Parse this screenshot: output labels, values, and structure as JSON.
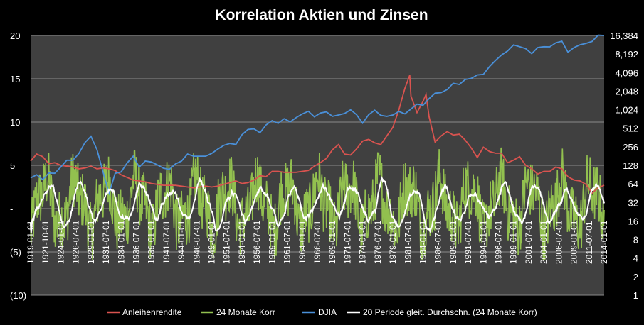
{
  "chart_data": {
    "type": "line",
    "title": "Korrelation Aktien und Zinsen",
    "plot_background": "#404040",
    "grid": true,
    "legend_position": "bottom",
    "y_left": {
      "min": -10,
      "max": 20,
      "ticks": [
        20,
        15,
        10,
        5,
        0,
        -5,
        -10
      ],
      "tick_labels": [
        "20",
        "15",
        "10",
        "5",
        "-",
        "(5)",
        "(10)"
      ]
    },
    "y_right": {
      "scale": "log2",
      "min": 1,
      "max": 16384,
      "ticks": [
        16384,
        8192,
        4096,
        2048,
        1024,
        512,
        256,
        128,
        64,
        32,
        16,
        8,
        4,
        2,
        1
      ],
      "tick_labels": [
        "16,384",
        "8,192",
        "4,096",
        "2,048",
        "1,024",
        "512",
        "256",
        "128",
        "64",
        "32",
        "16",
        "8",
        "4",
        "2",
        "1"
      ]
    },
    "x_range": [
      1919.0,
      2014.0
    ],
    "x_tick_labels": [
      "1919-01-01",
      "1921-10-01",
      "1924-01-01",
      "1926-07-01",
      "1929-01-01",
      "1931-07-01",
      "1934-01-01",
      "1936-07-01",
      "1939-01-01",
      "1941-07-01",
      "1944-01-01",
      "1946-07-01",
      "1949-01-01",
      "1951-07-01",
      "1954-01-01",
      "1956-07-01",
      "1959-01-01",
      "1961-07-01",
      "1964-01-01",
      "1966-07-01",
      "1969-01-01",
      "1971-07-01",
      "1974-01-01",
      "1976-07-01",
      "1979-01-01",
      "1981-07-01",
      "1984-01-01",
      "1986-07-01",
      "1989-01-01",
      "1991-07-01",
      "1994-01-01",
      "1996-07-01",
      "1999-01-01",
      "2001-07-01",
      "2004-01-01",
      "2006-07-01",
      "2009-01-01",
      "2011-07-01",
      "2014-01-01"
    ],
    "series": [
      {
        "name": "Anleihenrendite",
        "axis": "left",
        "color": "#d9534f",
        "points": [
          [
            1919,
            5.5
          ],
          [
            1920,
            6.3
          ],
          [
            1921,
            6.0
          ],
          [
            1922,
            5.2
          ],
          [
            1923,
            5.3
          ],
          [
            1924,
            5.0
          ],
          [
            1925,
            4.9
          ],
          [
            1926,
            4.8
          ],
          [
            1927,
            4.6
          ],
          [
            1928,
            4.7
          ],
          [
            1929,
            4.9
          ],
          [
            1930,
            4.6
          ],
          [
            1931,
            4.7
          ],
          [
            1932,
            4.6
          ],
          [
            1933,
            4.4
          ],
          [
            1934,
            3.9
          ],
          [
            1935,
            3.6
          ],
          [
            1936,
            3.3
          ],
          [
            1937,
            3.2
          ],
          [
            1938,
            3.1
          ],
          [
            1939,
            2.9
          ],
          [
            1940,
            2.8
          ],
          [
            1941,
            2.7
          ],
          [
            1942,
            2.7
          ],
          [
            1943,
            2.7
          ],
          [
            1944,
            2.6
          ],
          [
            1945,
            2.5
          ],
          [
            1946,
            2.4
          ],
          [
            1947,
            2.5
          ],
          [
            1948,
            2.6
          ],
          [
            1949,
            2.5
          ],
          [
            1950,
            2.6
          ],
          [
            1951,
            2.8
          ],
          [
            1952,
            3.0
          ],
          [
            1953,
            3.2
          ],
          [
            1954,
            2.9
          ],
          [
            1955,
            3.0
          ],
          [
            1956,
            3.3
          ],
          [
            1957,
            3.8
          ],
          [
            1958,
            3.7
          ],
          [
            1959,
            4.3
          ],
          [
            1960,
            4.3
          ],
          [
            1961,
            4.2
          ],
          [
            1962,
            4.2
          ],
          [
            1963,
            4.2
          ],
          [
            1964,
            4.3
          ],
          [
            1965,
            4.4
          ],
          [
            1966,
            4.9
          ],
          [
            1967,
            5.3
          ],
          [
            1968,
            5.8
          ],
          [
            1969,
            6.8
          ],
          [
            1970,
            7.4
          ],
          [
            1971,
            6.3
          ],
          [
            1972,
            6.2
          ],
          [
            1973,
            6.9
          ],
          [
            1974,
            7.8
          ],
          [
            1975,
            8.0
          ],
          [
            1976,
            7.6
          ],
          [
            1977,
            7.4
          ],
          [
            1978,
            8.4
          ],
          [
            1979,
            9.4
          ],
          [
            1980,
            11.4
          ],
          [
            1981,
            13.9
          ],
          [
            1981.8,
            15.4
          ],
          [
            1982,
            13.0
          ],
          [
            1983,
            11.1
          ],
          [
            1984,
            12.4
          ],
          [
            1984.5,
            13.2
          ],
          [
            1985,
            10.6
          ],
          [
            1986,
            7.7
          ],
          [
            1987,
            8.4
          ],
          [
            1988,
            8.9
          ],
          [
            1989,
            8.5
          ],
          [
            1990,
            8.6
          ],
          [
            1991,
            7.9
          ],
          [
            1992,
            7.0
          ],
          [
            1993,
            5.9
          ],
          [
            1994,
            7.1
          ],
          [
            1995,
            6.6
          ],
          [
            1996,
            6.4
          ],
          [
            1997,
            6.4
          ],
          [
            1998,
            5.3
          ],
          [
            1999,
            5.6
          ],
          [
            2000,
            6.0
          ],
          [
            2001,
            5.0
          ],
          [
            2002,
            4.6
          ],
          [
            2003,
            4.0
          ],
          [
            2004,
            4.3
          ],
          [
            2005,
            4.3
          ],
          [
            2006,
            4.8
          ],
          [
            2007,
            4.6
          ],
          [
            2008,
            3.7
          ],
          [
            2009,
            3.3
          ],
          [
            2010,
            3.2
          ],
          [
            2011,
            2.8
          ],
          [
            2012,
            1.8
          ],
          [
            2013,
            2.4
          ],
          [
            2014,
            2.7
          ]
        ]
      },
      {
        "name": "24 Monate Korr",
        "axis": "left",
        "color": "#92c04f",
        "style": "oscillating"
      },
      {
        "name": "DJIA",
        "axis": "right",
        "color": "#4a90d9",
        "points": [
          [
            1919,
            80
          ],
          [
            1920,
            90
          ],
          [
            1921,
            75
          ],
          [
            1922,
            96
          ],
          [
            1923,
            95
          ],
          [
            1924,
            120
          ],
          [
            1925,
            155
          ],
          [
            1926,
            155
          ],
          [
            1927,
            200
          ],
          [
            1928,
            300
          ],
          [
            1929,
            380
          ],
          [
            1929.9,
            240
          ],
          [
            1930,
            230
          ],
          [
            1931,
            100
          ],
          [
            1932,
            45
          ],
          [
            1933,
            95
          ],
          [
            1934,
            100
          ],
          [
            1935,
            140
          ],
          [
            1936,
            180
          ],
          [
            1937,
            120
          ],
          [
            1938,
            150
          ],
          [
            1939,
            145
          ],
          [
            1940,
            130
          ],
          [
            1941,
            115
          ],
          [
            1942,
            110
          ],
          [
            1943,
            135
          ],
          [
            1944,
            150
          ],
          [
            1945,
            195
          ],
          [
            1946,
            180
          ],
          [
            1947,
            180
          ],
          [
            1948,
            180
          ],
          [
            1949,
            200
          ],
          [
            1950,
            235
          ],
          [
            1951,
            270
          ],
          [
            1952,
            290
          ],
          [
            1953,
            280
          ],
          [
            1954,
            400
          ],
          [
            1955,
            490
          ],
          [
            1956,
            500
          ],
          [
            1957,
            435
          ],
          [
            1958,
            580
          ],
          [
            1959,
            680
          ],
          [
            1960,
            615
          ],
          [
            1961,
            730
          ],
          [
            1962,
            650
          ],
          [
            1963,
            765
          ],
          [
            1964,
            875
          ],
          [
            1965,
            965
          ],
          [
            1966,
            785
          ],
          [
            1967,
            905
          ],
          [
            1968,
            945
          ],
          [
            1969,
            800
          ],
          [
            1970,
            840
          ],
          [
            1971,
            890
          ],
          [
            1972,
            1020
          ],
          [
            1973,
            850
          ],
          [
            1974,
            620
          ],
          [
            1975,
            850
          ],
          [
            1976,
            1005
          ],
          [
            1977,
            830
          ],
          [
            1978,
            800
          ],
          [
            1979,
            840
          ],
          [
            1980,
            960
          ],
          [
            1981,
            875
          ],
          [
            1982,
            1050
          ],
          [
            1983,
            1260
          ],
          [
            1984,
            1210
          ],
          [
            1985,
            1550
          ],
          [
            1986,
            1900
          ],
          [
            1987,
            1940
          ],
          [
            1988,
            2170
          ],
          [
            1989,
            2750
          ],
          [
            1990,
            2630
          ],
          [
            1991,
            3170
          ],
          [
            1992,
            3300
          ],
          [
            1993,
            3750
          ],
          [
            1994,
            3830
          ],
          [
            1995,
            5120
          ],
          [
            1996,
            6450
          ],
          [
            1997,
            7900
          ],
          [
            1998,
            9200
          ],
          [
            1999,
            11500
          ],
          [
            2000,
            10790
          ],
          [
            2001,
            10020
          ],
          [
            2002,
            8340
          ],
          [
            2003,
            10450
          ],
          [
            2004,
            10780
          ],
          [
            2005,
            10720
          ],
          [
            2006,
            12460
          ],
          [
            2007,
            13260
          ],
          [
            2008,
            8780
          ],
          [
            2009,
            10430
          ],
          [
            2010,
            11580
          ],
          [
            2011,
            12220
          ],
          [
            2012,
            13100
          ],
          [
            2013,
            16580
          ],
          [
            2014,
            16400
          ]
        ]
      },
      {
        "name": "20 Periode gleit. Durchschn. (24 Monate Korr)",
        "axis": "left",
        "color": "#ffffff",
        "style": "smoothed"
      }
    ]
  }
}
